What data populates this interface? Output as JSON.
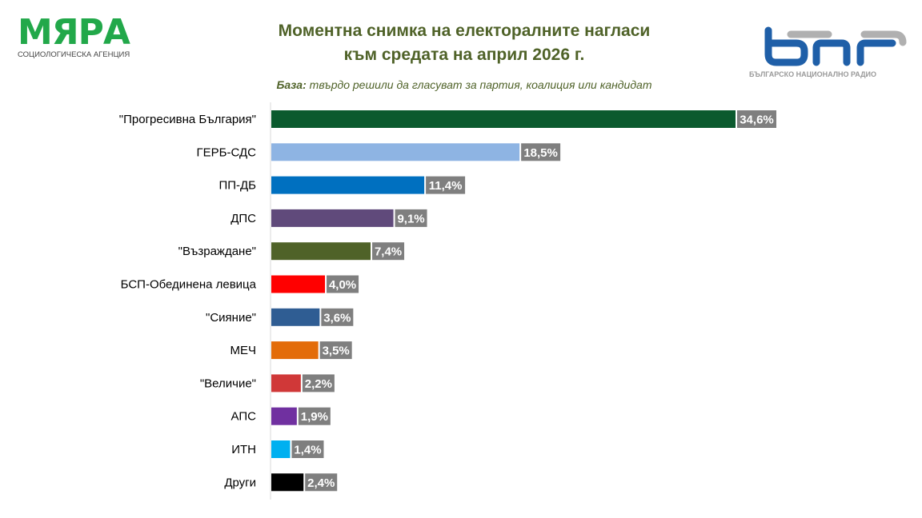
{
  "logos": {
    "left": {
      "name": "МЯРА",
      "tagline": "СОЦИОЛОГИЧЕСКА АГЕНЦИЯ",
      "color": "#22a84a"
    },
    "right": {
      "name": "бнр",
      "tagline": "БЪЛГАРСКО НАЦИОНАЛНО РАДИО",
      "colors": [
        "#1f5fa8",
        "#b0b0b0"
      ]
    }
  },
  "chart_data": {
    "type": "bar",
    "orientation": "horizontal",
    "title": "Моментна снимка на електоралните нагласи към средата на април 2026 г.",
    "title_lines": [
      "Моментна снимка на електоралните нагласи",
      "към средата на април 2026 г."
    ],
    "subtitle_label": "База:",
    "subtitle_text": " твърдо решили да гласуват за партия, коалиция или кандидат",
    "categories": [
      "\"Прогресивна България\"",
      "ГЕРБ-СДС",
      "ПП-ДБ",
      "ДПС",
      "\"Възраждане\"",
      "БСП-Обединена левица",
      "\"Сияние\"",
      "МЕЧ",
      "\"Величие\"",
      "АПС",
      "ИТН",
      "Други"
    ],
    "values": [
      34.6,
      18.5,
      11.4,
      9.1,
      7.4,
      4.0,
      3.6,
      3.5,
      2.2,
      1.9,
      1.4,
      2.4
    ],
    "data_labels": [
      "34,6%",
      "18,5%",
      "11,4%",
      "9,1%",
      "7,4%",
      "4,0%",
      "3,6%",
      "3,5%",
      "2,2%",
      "1,9%",
      "1,4%",
      "2,4%"
    ],
    "colors": [
      "#0b5a2e",
      "#8eb4e3",
      "#0070c0",
      "#604a7b",
      "#4f6228",
      "#ff0000",
      "#2f5d93",
      "#e36c09",
      "#d03838",
      "#7030a0",
      "#00b0f0",
      "#000000"
    ],
    "label_box_color": "#7f7f7f",
    "xlim": [
      0,
      35
    ],
    "unit": "%",
    "grid": false,
    "legend": "none"
  }
}
